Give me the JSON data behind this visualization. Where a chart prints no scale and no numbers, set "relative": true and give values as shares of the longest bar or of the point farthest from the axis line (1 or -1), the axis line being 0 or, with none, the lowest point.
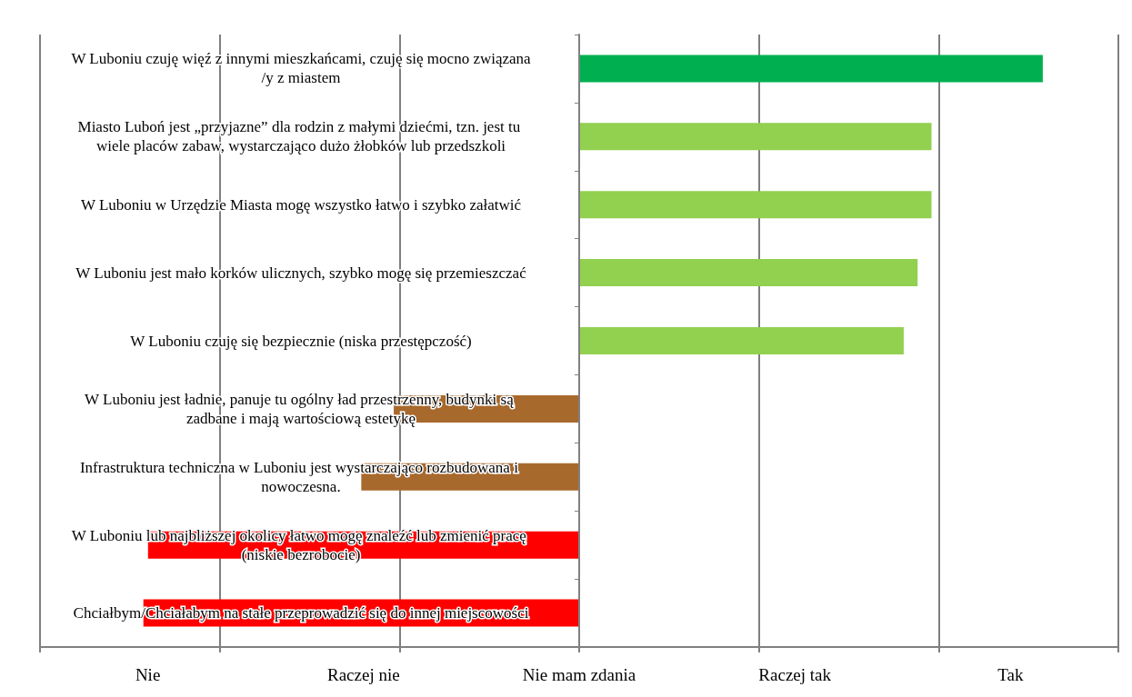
{
  "chart_data": {
    "type": "bar",
    "orientation": "horizontal",
    "relative": true,
    "categories": [
      "W Luboniu czuję więź z innymi mieszkańcami, czuję się mocno związana/y z miastem",
      "Miasto Luboń jest „przyjazne” dla rodzin z małymi dziećmi, tzn. jest tu wiele placów zabaw, wystarczająco dużo żłobków lub przedszkoli",
      "W Luboniu w Urzędzie Miasta mogę wszystko łatwo i szybko załatwić",
      "W Luboniu jest mało korków ulicznych, szybko mogę się przemieszczać",
      "W Luboniu czuję się bezpiecznie (niska przestępczość)",
      "W Luboniu jest ładnie, panuje tu ogólny ład przestrzenny, budynki są zadbane i mają wartościową estetykę",
      "Infrastruktura techniczna w Luboniu jest wystarczająco rozbudowana i nowoczesna.",
      "W Luboniu lub najbliższej okolicy łatwo mogę znaleźć lub zmienić pracę (niskie bezrobocie)",
      "Chciałbym/Chciałabym na stałe przeprowadzić się do innej miejscowości"
    ],
    "values": [
      1,
      0.76,
      0.76,
      0.73,
      0.7,
      -0.4,
      -0.47,
      -0.93,
      -0.94
    ],
    "colors": [
      "#00b050",
      "#92d050",
      "#92d050",
      "#92d050",
      "#92d050",
      "#a8692d",
      "#a8692d",
      "#ff0000",
      "#ff0000"
    ],
    "annotations": [
      "Nie",
      "Raczej nie",
      "Nie mam zdania",
      "Raczej tak",
      "Tak"
    ],
    "grid": "x"
  }
}
